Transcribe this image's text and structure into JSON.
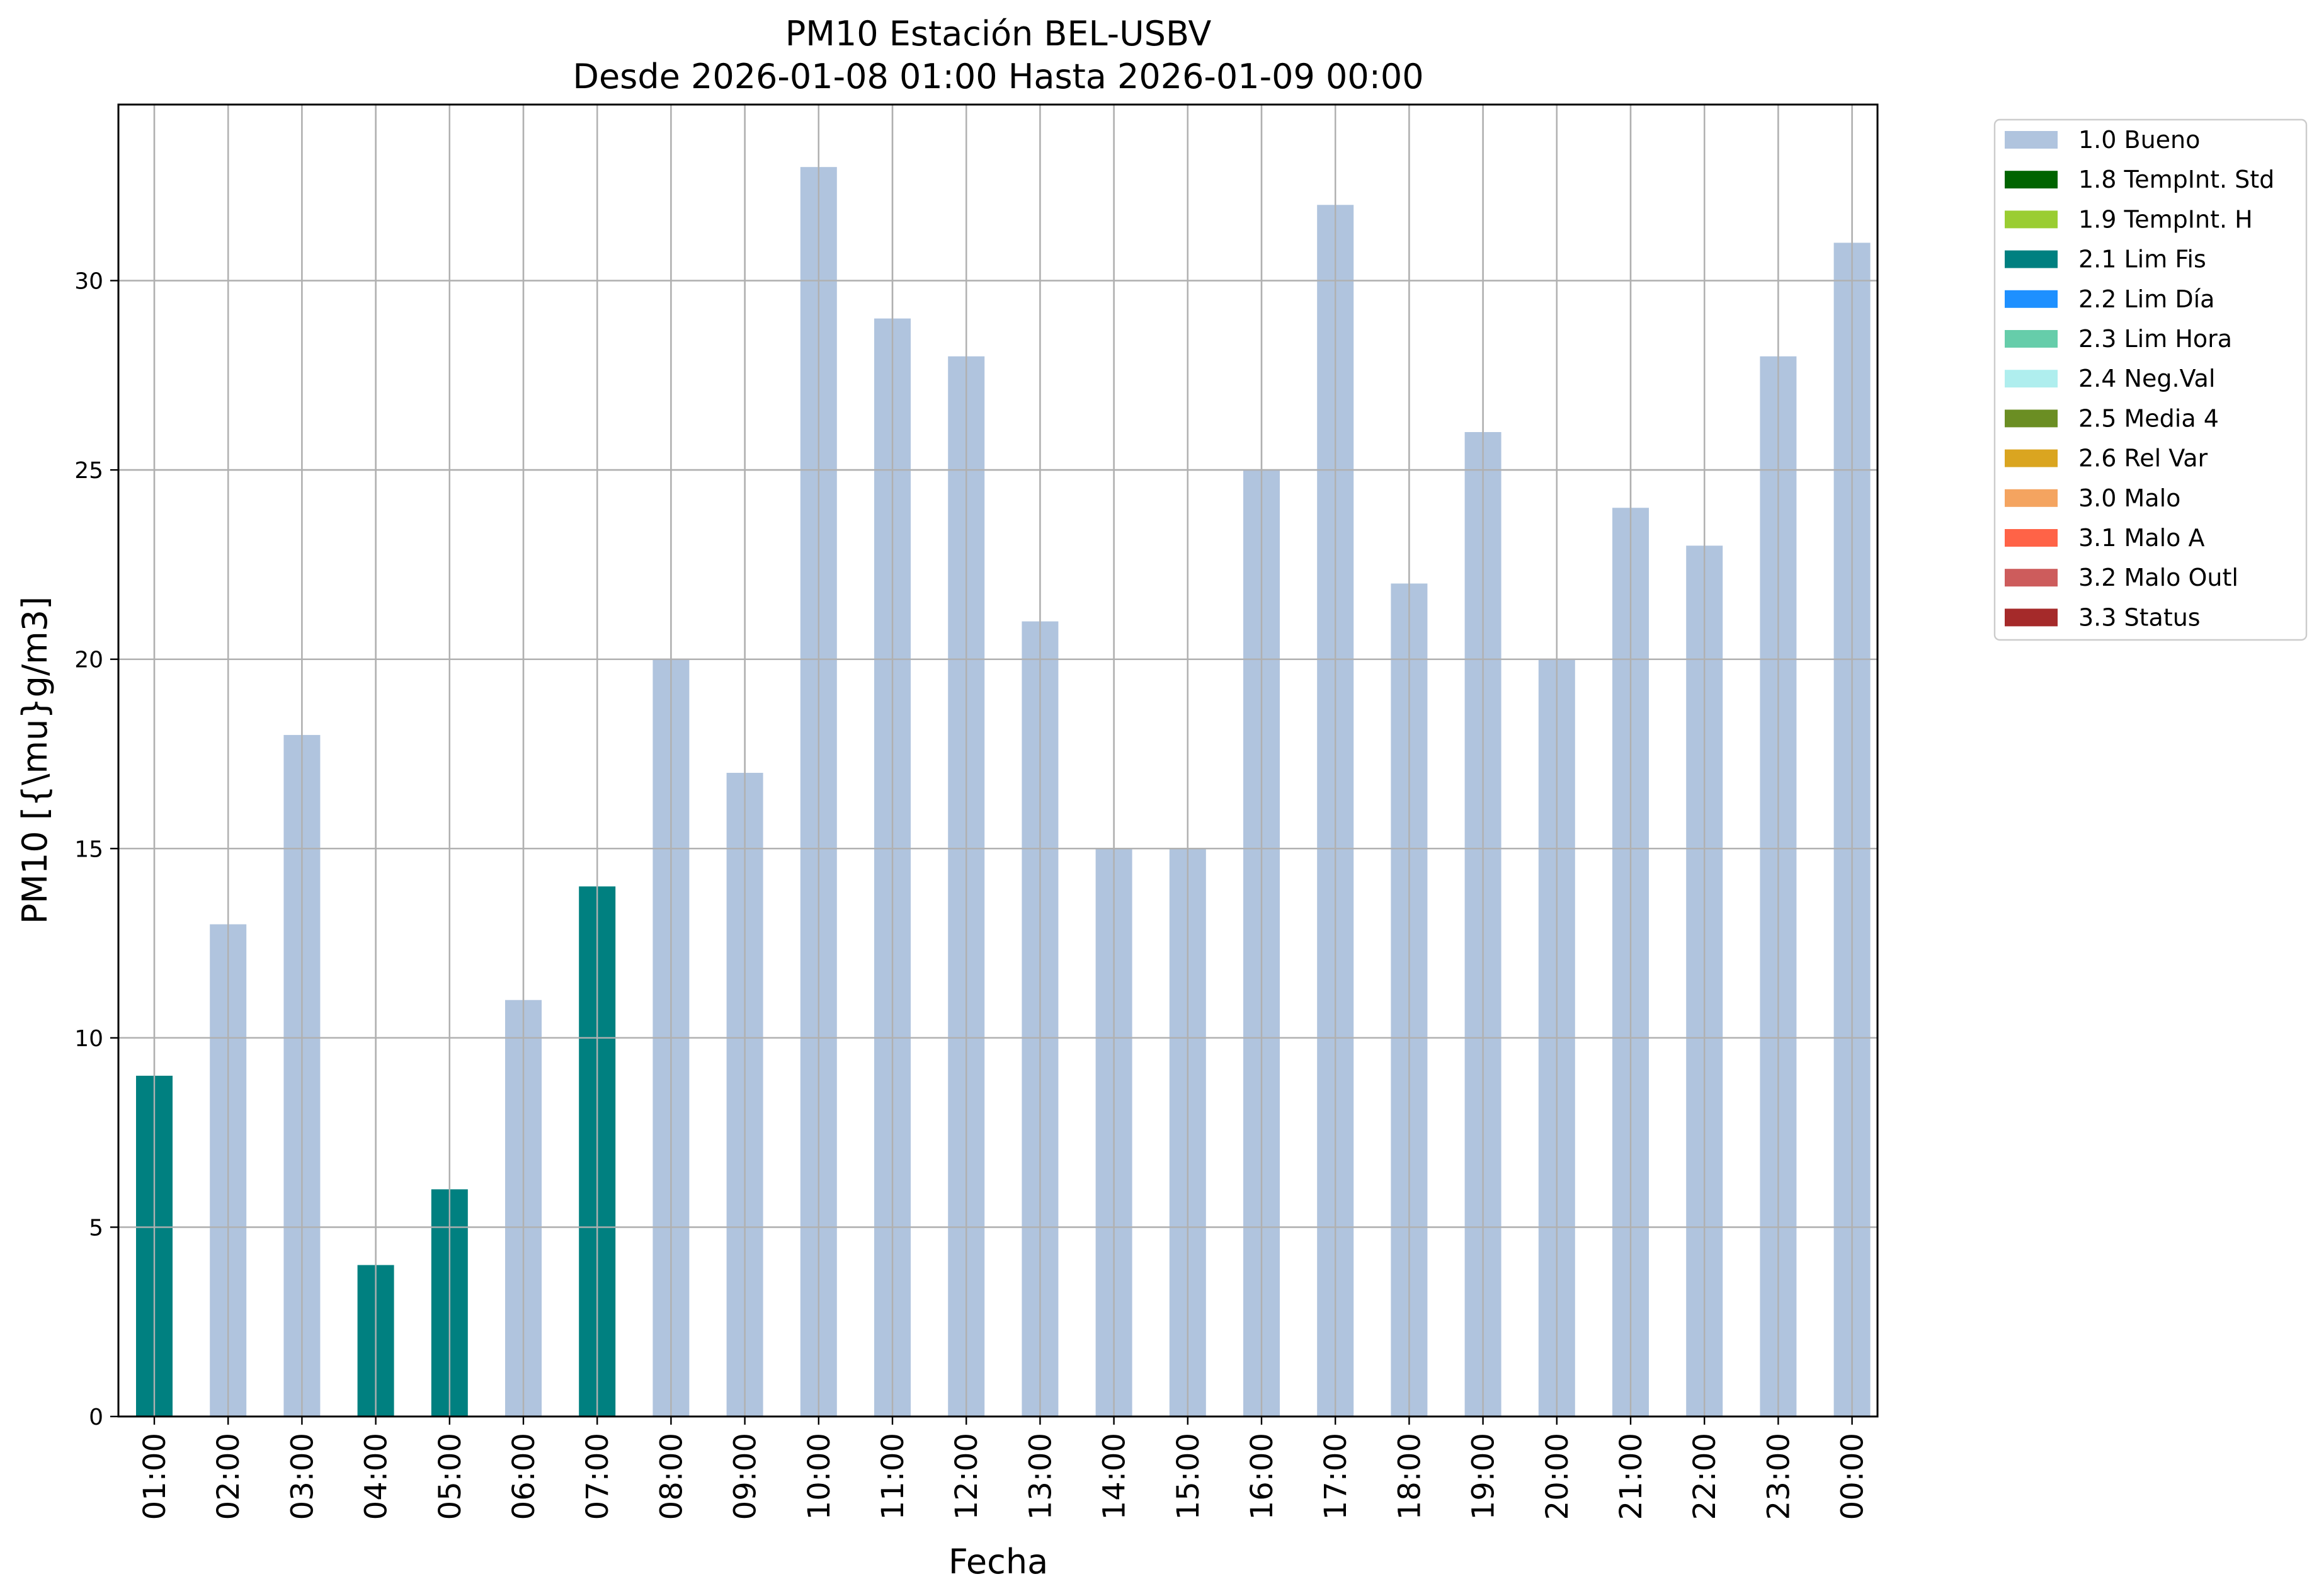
{
  "chart_data": {
    "type": "bar",
    "title": "PM10 Estación BEL-USBV",
    "subtitle": "Desde 2026-01-08 01:00 Hasta 2026-01-09 00:00",
    "xlabel": "Fecha",
    "ylabel": "PM10 [{\\mu}g/m3]",
    "ylim": [
      0,
      34.65
    ],
    "yticks": [
      0,
      5,
      10,
      15,
      20,
      25,
      30
    ],
    "grid": true,
    "legend_placement": "outside-top-right",
    "categories": [
      "01:00",
      "02:00",
      "03:00",
      "04:00",
      "05:00",
      "06:00",
      "07:00",
      "08:00",
      "09:00",
      "10:00",
      "11:00",
      "12:00",
      "13:00",
      "14:00",
      "15:00",
      "16:00",
      "17:00",
      "18:00",
      "19:00",
      "20:00",
      "21:00",
      "22:00",
      "23:00",
      "00:00"
    ],
    "values": [
      9,
      13,
      18,
      4,
      6,
      11,
      14,
      20,
      17,
      33,
      29,
      28,
      21,
      15,
      15,
      25,
      32,
      22,
      26,
      20,
      24,
      23,
      28,
      31
    ],
    "flags": [
      "2.1 Lim Fis",
      "1.0 Bueno",
      "1.0 Bueno",
      "2.1 Lim Fis",
      "2.1 Lim Fis",
      "1.0 Bueno",
      "2.1 Lim Fis",
      "1.0 Bueno",
      "1.0 Bueno",
      "1.0 Bueno",
      "1.0 Bueno",
      "1.0 Bueno",
      "1.0 Bueno",
      "1.0 Bueno",
      "1.0 Bueno",
      "1.0 Bueno",
      "1.0 Bueno",
      "1.0 Bueno",
      "1.0 Bueno",
      "1.0 Bueno",
      "1.0 Bueno",
      "1.0 Bueno",
      "1.0 Bueno",
      "1.0 Bueno"
    ],
    "legend": [
      {
        "label": "1.0 Bueno",
        "color": "#b0c4de"
      },
      {
        "label": "1.8 TempInt. Std",
        "color": "#006400"
      },
      {
        "label": "1.9 TempInt. H",
        "color": "#9acd32"
      },
      {
        "label": "2.1 Lim Fis",
        "color": "#008080"
      },
      {
        "label": "2.2 Lim Día",
        "color": "#1e90ff"
      },
      {
        "label": "2.3 Lim Hora",
        "color": "#66cdaa"
      },
      {
        "label": "2.4 Neg.Val",
        "color": "#afeeee"
      },
      {
        "label": "2.5 Media 4",
        "color": "#6b8e23"
      },
      {
        "label": "2.6 Rel Var",
        "color": "#daa520"
      },
      {
        "label": "3.0 Malo",
        "color": "#f4a460"
      },
      {
        "label": "3.1 Malo A",
        "color": "#ff6347"
      },
      {
        "label": "3.2 Malo Outl",
        "color": "#cd5c5c"
      },
      {
        "label": "3.3 Status",
        "color": "#a52a2a"
      }
    ]
  }
}
